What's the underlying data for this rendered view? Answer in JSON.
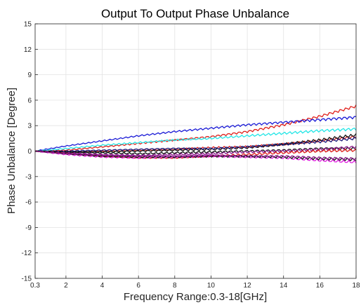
{
  "chart_data": {
    "type": "line",
    "title": "Output To Output Phase Unbalance",
    "xlabel": "Frequency Range:0.3-18[GHz]",
    "ylabel": "Phase Unbalance [Degree]",
    "xlim": [
      0.3,
      18
    ],
    "ylim": [
      -15,
      15
    ],
    "x_ticks": [
      0.3,
      2,
      4,
      6,
      8,
      10,
      12,
      14,
      16,
      18
    ],
    "x_tick_labels": [
      "0.3",
      "2",
      "4",
      "6",
      "8",
      "10",
      "12",
      "14",
      "16",
      "18"
    ],
    "y_ticks": [
      15,
      12,
      9,
      6,
      3,
      0,
      -3,
      -6,
      -9,
      -12,
      -15
    ],
    "y_tick_labels": [
      "15",
      "12",
      "9",
      "6",
      "3",
      "0",
      "-3",
      "-6",
      "-9",
      "-12",
      "-15"
    ],
    "grid": true,
    "legend": "none",
    "colors": {
      "red": "#e0201b",
      "blue": "#1a1ad6",
      "cyan": "#22e6e6",
      "black": "#111111",
      "navy": "#1a1a7a",
      "magenta": "#e01ee0",
      "purple": "#8a1a8a"
    },
    "series": [
      {
        "color": "red",
        "x": [
          0.3,
          2,
          4,
          6,
          8,
          10,
          12,
          14,
          16,
          18
        ],
        "y": [
          0,
          0.1,
          0.5,
          0.9,
          1.3,
          1.7,
          2.3,
          3.1,
          4.1,
          5.3
        ]
      },
      {
        "color": "blue",
        "x": [
          0.3,
          2,
          4,
          6,
          8,
          10,
          12,
          14,
          16,
          18
        ],
        "y": [
          0,
          0.6,
          1.2,
          1.8,
          2.3,
          2.7,
          3.1,
          3.4,
          3.7,
          4.0
        ]
      },
      {
        "color": "cyan",
        "x": [
          0.3,
          2,
          4,
          6,
          8,
          10,
          12,
          14,
          16,
          18
        ],
        "y": [
          0,
          0.3,
          0.7,
          1.0,
          1.3,
          1.5,
          1.8,
          2.1,
          2.4,
          2.6
        ]
      },
      {
        "color": "red",
        "x": [
          0.3,
          2,
          4,
          6,
          8,
          10,
          12,
          14,
          16,
          18
        ],
        "y": [
          0,
          -0.1,
          0,
          0.1,
          0.2,
          0.4,
          0.5,
          0.8,
          1.2,
          1.7
        ]
      },
      {
        "color": "black",
        "x": [
          0.3,
          2,
          4,
          6,
          8,
          10,
          12,
          14,
          16,
          18
        ],
        "y": [
          0,
          -0.1,
          -0.1,
          0,
          0.1,
          0.2,
          0.4,
          0.8,
          1.3,
          1.9
        ]
      },
      {
        "color": "navy",
        "x": [
          0.3,
          2,
          4,
          6,
          8,
          10,
          12,
          14,
          16,
          18
        ],
        "y": [
          0,
          0,
          0.1,
          0.2,
          0.3,
          0.3,
          0.5,
          0.8,
          1.1,
          1.5
        ]
      },
      {
        "color": "black",
        "x": [
          0.3,
          2,
          4,
          6,
          8,
          10,
          12,
          14,
          16,
          18
        ],
        "y": [
          0,
          -0.1,
          -0.2,
          -0.3,
          -0.2,
          -0.1,
          0,
          0.1,
          0.3,
          0.3
        ]
      },
      {
        "color": "purple",
        "x": [
          0.3,
          2,
          4,
          6,
          8,
          10,
          12,
          14,
          16,
          18
        ],
        "y": [
          0,
          -0.2,
          -0.4,
          -0.5,
          -0.4,
          -0.3,
          -0.1,
          0,
          0.2,
          0.5
        ]
      },
      {
        "color": "red",
        "x": [
          0.3,
          2,
          4,
          6,
          8,
          10,
          12,
          14,
          16,
          18
        ],
        "y": [
          0,
          -0.3,
          -0.6,
          -0.8,
          -0.8,
          -0.6,
          -0.4,
          -0.2,
          0,
          0.1
        ]
      },
      {
        "color": "magenta",
        "x": [
          0.3,
          2,
          4,
          6,
          8,
          10,
          12,
          14,
          16,
          18
        ],
        "y": [
          0,
          -0.4,
          -0.7,
          -0.8,
          -0.7,
          -0.6,
          -0.7,
          -0.8,
          -1.1,
          -1.3
        ]
      },
      {
        "color": "black",
        "x": [
          0.3,
          2,
          4,
          6,
          8,
          10,
          12,
          14,
          16,
          18
        ],
        "y": [
          0,
          -0.3,
          -0.6,
          -0.7,
          -0.7,
          -0.6,
          -0.6,
          -0.7,
          -0.9,
          -1.0
        ]
      },
      {
        "color": "purple",
        "x": [
          0.3,
          2,
          4,
          6,
          8,
          10,
          12,
          14,
          16,
          18
        ],
        "y": [
          0,
          -0.3,
          -0.5,
          -0.6,
          -0.6,
          -0.5,
          -0.6,
          -0.6,
          -0.8,
          -0.9
        ]
      }
    ]
  }
}
